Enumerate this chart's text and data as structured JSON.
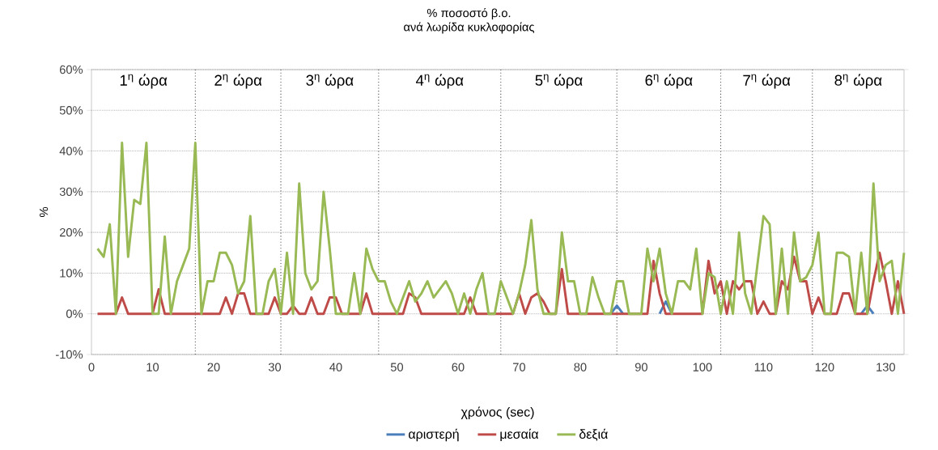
{
  "chart_data": {
    "type": "line",
    "title": "% ποσοστό β.ο.",
    "subtitle": "ανά λωρίδα κυκλοφορίας",
    "xlabel": "χρόνος (sec)",
    "ylabel": "%",
    "x": [
      1,
      2,
      3,
      4,
      5,
      6,
      7,
      8,
      9,
      10,
      11,
      12,
      13,
      14,
      15,
      16,
      17,
      18,
      19,
      20,
      21,
      22,
      23,
      24,
      25,
      26,
      27,
      28,
      29,
      30,
      31,
      32,
      33,
      34,
      35,
      36,
      37,
      38,
      39,
      40,
      41,
      42,
      43,
      44,
      45,
      46,
      47,
      48,
      49,
      50,
      51,
      52,
      53,
      54,
      55,
      56,
      57,
      58,
      59,
      60,
      61,
      62,
      63,
      64,
      65,
      66,
      67,
      68,
      69,
      70,
      71,
      72,
      73,
      74,
      75,
      76,
      77,
      78,
      79,
      80,
      81,
      82,
      83,
      84,
      85,
      86,
      87,
      88,
      89,
      90,
      91,
      92,
      93,
      94,
      95,
      96,
      97,
      98,
      99,
      100,
      101,
      102,
      103,
      104,
      105,
      106,
      107,
      108,
      109,
      110,
      111,
      112,
      113,
      114,
      115,
      116,
      117,
      118,
      119,
      120,
      121,
      122,
      123,
      124,
      125,
      126,
      127,
      128,
      129,
      130,
      131,
      132,
      133
    ],
    "series": [
      {
        "name": "αριστερή",
        "color": "#4a7ebb",
        "values": [
          null,
          null,
          null,
          null,
          null,
          null,
          null,
          null,
          null,
          null,
          null,
          null,
          null,
          null,
          null,
          null,
          null,
          null,
          null,
          null,
          null,
          null,
          null,
          null,
          null,
          null,
          null,
          null,
          null,
          null,
          null,
          null,
          null,
          null,
          null,
          null,
          null,
          null,
          null,
          null,
          null,
          null,
          null,
          null,
          null,
          null,
          null,
          null,
          null,
          null,
          null,
          null,
          null,
          null,
          null,
          null,
          null,
          null,
          null,
          null,
          null,
          null,
          null,
          null,
          null,
          null,
          null,
          null,
          null,
          null,
          null,
          null,
          null,
          null,
          null,
          null,
          null,
          null,
          null,
          null,
          null,
          null,
          null,
          null,
          0,
          2,
          0,
          null,
          null,
          null,
          null,
          null,
          0,
          3,
          0,
          null,
          null,
          null,
          null,
          null,
          null,
          null,
          null,
          null,
          null,
          null,
          null,
          null,
          null,
          null,
          null,
          null,
          null,
          null,
          null,
          null,
          null,
          null,
          null,
          null,
          null,
          null,
          null,
          null,
          null,
          0,
          2,
          0,
          null,
          null,
          null,
          null,
          null
        ]
      },
      {
        "name": "μεσαία",
        "color": "#be4b48",
        "values": [
          0,
          0,
          0,
          0,
          4,
          0,
          0,
          0,
          0,
          0,
          6,
          0,
          0,
          0,
          0,
          0,
          0,
          0,
          0,
          0,
          0,
          4,
          0,
          5,
          5,
          0,
          0,
          0,
          0,
          4,
          0,
          0,
          2,
          0,
          0,
          4,
          0,
          0,
          4,
          4,
          0,
          0,
          0,
          0,
          5,
          0,
          0,
          0,
          0,
          0,
          0,
          5,
          4,
          0,
          0,
          0,
          0,
          0,
          0,
          0,
          0,
          4,
          0,
          0,
          0,
          0,
          0,
          0,
          0,
          5,
          0,
          4,
          5,
          3,
          0,
          0,
          11,
          0,
          0,
          0,
          0,
          0,
          0,
          0,
          0,
          0,
          0,
          0,
          0,
          0,
          0,
          13,
          5,
          0,
          0,
          0,
          0,
          0,
          0,
          0,
          13,
          5,
          8,
          0,
          8,
          6,
          8,
          8,
          0,
          3,
          0,
          0,
          8,
          6,
          14,
          8,
          8,
          0,
          4,
          0,
          0,
          0,
          5,
          5,
          0,
          0,
          0,
          8,
          15,
          8,
          0,
          8,
          0
        ]
      },
      {
        "name": "δεξιά",
        "color": "#98b954",
        "values": [
          16,
          14,
          22,
          0,
          42,
          14,
          28,
          27,
          42,
          0,
          0,
          19,
          0,
          8,
          12,
          16,
          42,
          0,
          8,
          8,
          15,
          15,
          12,
          5,
          8,
          24,
          0,
          0,
          8,
          11,
          0,
          15,
          0,
          32,
          10,
          6,
          8,
          30,
          16,
          0,
          0,
          0,
          10,
          0,
          16,
          11,
          8,
          8,
          3,
          0,
          4,
          8,
          3,
          5,
          8,
          4,
          6,
          8,
          5,
          0,
          5,
          0,
          6,
          10,
          0,
          0,
          8,
          4,
          0,
          5,
          12,
          23,
          6,
          0,
          0,
          0,
          20,
          8,
          8,
          0,
          0,
          9,
          4,
          0,
          0,
          8,
          8,
          0,
          0,
          0,
          16,
          8,
          16,
          5,
          0,
          8,
          8,
          6,
          16,
          0,
          10,
          9,
          0,
          8,
          0,
          20,
          5,
          0,
          12,
          24,
          22,
          0,
          16,
          0,
          20,
          8,
          9,
          12,
          20,
          0,
          0,
          15,
          15,
          14,
          0,
          15,
          0,
          32,
          8,
          12,
          13,
          0,
          15
        ]
      }
    ],
    "xlim": [
      0,
      133
    ],
    "xticks": [
      0,
      10,
      20,
      30,
      40,
      50,
      60,
      70,
      80,
      90,
      100,
      110,
      120,
      130
    ],
    "ylim": [
      -10,
      60
    ],
    "yticks": [
      {
        "value": -10,
        "label": "-10%"
      },
      {
        "value": 0,
        "label": "0%"
      },
      {
        "value": 10,
        "label": "10%"
      },
      {
        "value": 20,
        "label": "20%"
      },
      {
        "value": 30,
        "label": "30%"
      },
      {
        "value": 40,
        "label": "40%"
      },
      {
        "value": 50,
        "label": "50%"
      },
      {
        "value": 60,
        "label": "60%"
      }
    ],
    "grid": "y",
    "legend": "bottom",
    "ref_lines": [
      {
        "axis": "x",
        "value": 17,
        "line_style": "dotted"
      },
      {
        "axis": "x",
        "value": 31,
        "line_style": "dotted"
      },
      {
        "axis": "x",
        "value": 47,
        "line_style": "dotted"
      },
      {
        "axis": "x",
        "value": 67,
        "line_style": "dotted"
      },
      {
        "axis": "x",
        "value": 86,
        "line_style": "dotted"
      },
      {
        "axis": "x",
        "value": 103,
        "line_style": "dotted"
      },
      {
        "axis": "x",
        "value": 118,
        "line_style": "dotted"
      }
    ],
    "annotations": [
      "1$^{η}$ ώρα",
      "2$^{η}$ ώρα",
      "3$^{η}$ ώρα",
      "4$^{η}$ ώρα",
      "5$^{η}$ ώρα",
      "6$^{η}$ ώρα",
      "7$^{η}$ ώρα",
      "8$^{η}$ ώρα"
    ]
  }
}
